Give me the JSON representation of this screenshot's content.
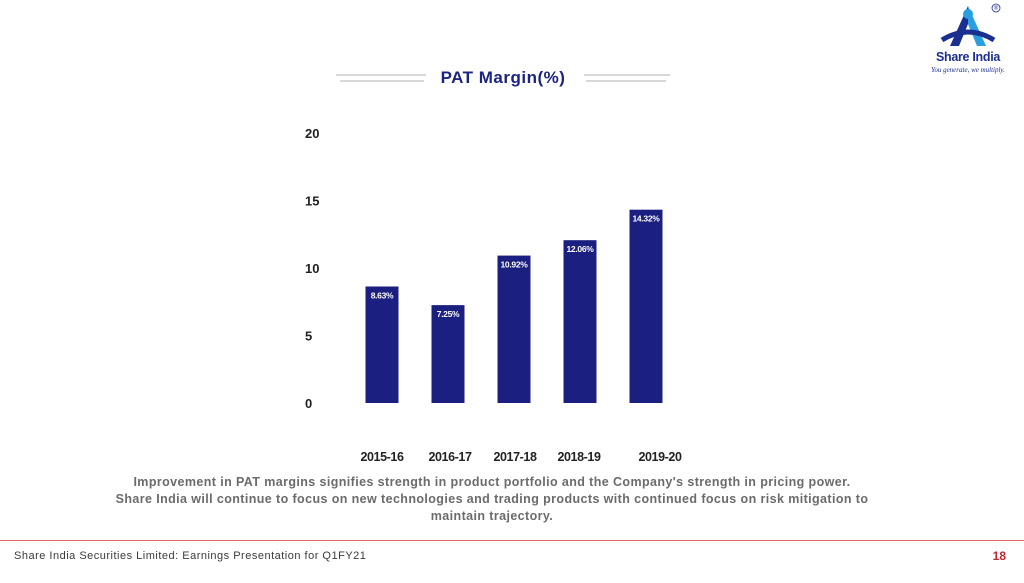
{
  "header": {
    "title": "PAT Margin(%)",
    "logo": {
      "name": "Share India",
      "tagline": "You generate, we multiply.",
      "registered_mark": "®",
      "colors": {
        "primary": "#1b2f8e",
        "accent": "#2a9fe0"
      }
    }
  },
  "chart_data": {
    "type": "bar",
    "title": "PAT Margin(%)",
    "categories": [
      "2015-16",
      "2016-17",
      "2017-18",
      "2018-19",
      "2019-20"
    ],
    "values": [
      8.63,
      7.25,
      10.92,
      12.06,
      14.32
    ],
    "data_labels": [
      "8.63%",
      "7.25%",
      "10.92%",
      "12.06%",
      "14.32%"
    ],
    "y_ticks": [
      0,
      5,
      10,
      15,
      20
    ],
    "ylim": [
      0,
      20
    ],
    "grid": false,
    "legend": "none",
    "bar_color": "#1b1f80"
  },
  "caption": {
    "line1": "Improvement in PAT margins signifies strength in product portfolio and the Company's strength in pricing power.",
    "line2": "Share India will continue to focus on new technologies and trading products with continued focus on risk mitigation to",
    "line3": "maintain trajectory."
  },
  "footer": {
    "left_text": "Share India Securities Limited: Earnings Presentation for Q1FY21",
    "page_number": "18",
    "accent_color": "#c0262d"
  }
}
